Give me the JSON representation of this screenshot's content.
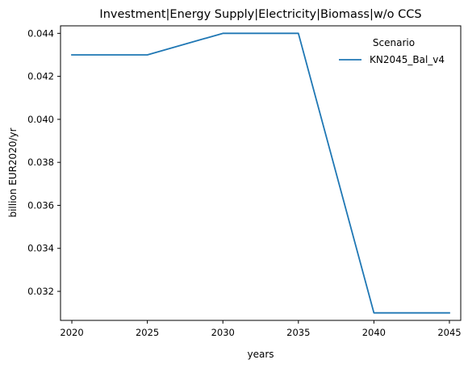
{
  "chart_data": {
    "type": "line",
    "title": "Investment|Energy Supply|Electricity|Biomass|w/o CCS",
    "xlabel": "years",
    "ylabel": "billion EUR2020/yr",
    "x": [
      2020,
      2025,
      2030,
      2035,
      2040,
      2045
    ],
    "x_ticks": [
      "2020",
      "2025",
      "2030",
      "2035",
      "2040",
      "2045"
    ],
    "y_ticks": [
      "0.032",
      "0.034",
      "0.036",
      "0.038",
      "0.040",
      "0.042",
      "0.044"
    ],
    "xlim": [
      2019.25,
      2045.75
    ],
    "ylim": [
      0.03065,
      0.04435
    ],
    "grid": false,
    "legend": {
      "title": "Scenario",
      "placement": "top-right"
    },
    "series": [
      {
        "name": "KN2045_Bal_v4",
        "color": "#1f77b4",
        "values": [
          0.043,
          0.043,
          0.044,
          0.044,
          0.031,
          0.031
        ]
      }
    ]
  }
}
